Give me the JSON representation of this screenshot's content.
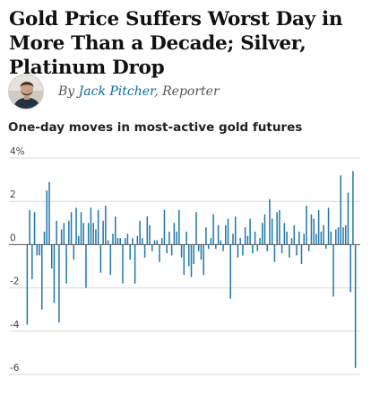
{
  "article": {
    "headline": "Gold Price Suffers Worst Day in More Than a Decade; Silver, Platinum Drop",
    "byline_prefix": "By",
    "author": "Jack Pitcher",
    "author_role": ", Reporter"
  },
  "avatar_icon": "author-portrait-icon",
  "colors": {
    "bar": "#1f77a8",
    "gridline": "#d9d9d9",
    "zero_line": "#555555",
    "author_link": "#0f6a9e",
    "headline": "#111111"
  },
  "chart_data": {
    "type": "bar",
    "title": "One-day moves in most-active gold futures",
    "xlabel": "",
    "ylabel": "",
    "ylim": [
      -6,
      4
    ],
    "y_ticks": [
      4,
      2,
      0,
      -2,
      -4,
      -6
    ],
    "y_tick_labels": [
      "4%",
      "2",
      "0",
      "-2",
      "-4",
      "-6"
    ],
    "grid": true,
    "series": [
      {
        "values": [
          -3.7,
          1.6,
          -1.6,
          1.5,
          -0.5,
          -0.5,
          -3.0,
          0.6,
          2.5,
          2.9,
          -1.1,
          -2.7,
          1.1,
          -3.6,
          0.7,
          1.0,
          -1.8,
          1.1,
          1.5,
          -0.7,
          1.7,
          0.4,
          1.5,
          1.0,
          -2.0,
          1.0,
          1.7,
          1.0,
          0.7,
          1.6,
          -1.3,
          1.1,
          1.8,
          0.2,
          -1.4,
          0.5,
          1.3,
          0.3,
          0.3,
          -1.8,
          0.3,
          0.5,
          -0.7,
          0.3,
          -1.8,
          0.4,
          1.1,
          0.3,
          -0.6,
          1.3,
          0.9,
          -0.3,
          0.2,
          0.2,
          -0.8,
          0.3,
          1.6,
          -0.4,
          0.6,
          -0.5,
          1.0,
          0.6,
          1.6,
          -0.6,
          -1.4,
          0.6,
          -1.0,
          -1.5,
          -0.9,
          1.5,
          -0.3,
          -0.7,
          -1.4,
          0.8,
          -0.2,
          0.3,
          1.4,
          -0.2,
          0.9,
          0.2,
          -0.3,
          0.9,
          1.2,
          -2.5,
          0.5,
          1.3,
          -0.6,
          0.3,
          -0.5,
          0.8,
          0.4,
          1.2,
          -0.4,
          0.6,
          -0.3,
          0.3,
          1.0,
          1.4,
          -0.3,
          2.1,
          1.2,
          -0.8,
          1.5,
          1.6,
          -0.4,
          1.0,
          0.6,
          -0.6,
          0.3,
          0.9,
          -0.5,
          0.6,
          -0.9,
          0.5,
          1.8,
          -0.3,
          1.4,
          1.2,
          0.5,
          1.6,
          0.6,
          0.9,
          -0.2,
          1.7,
          0.6,
          -2.4,
          0.7,
          0.8,
          3.2,
          0.8,
          0.9,
          2.4,
          -2.2,
          3.4,
          -5.7
        ]
      }
    ]
  }
}
